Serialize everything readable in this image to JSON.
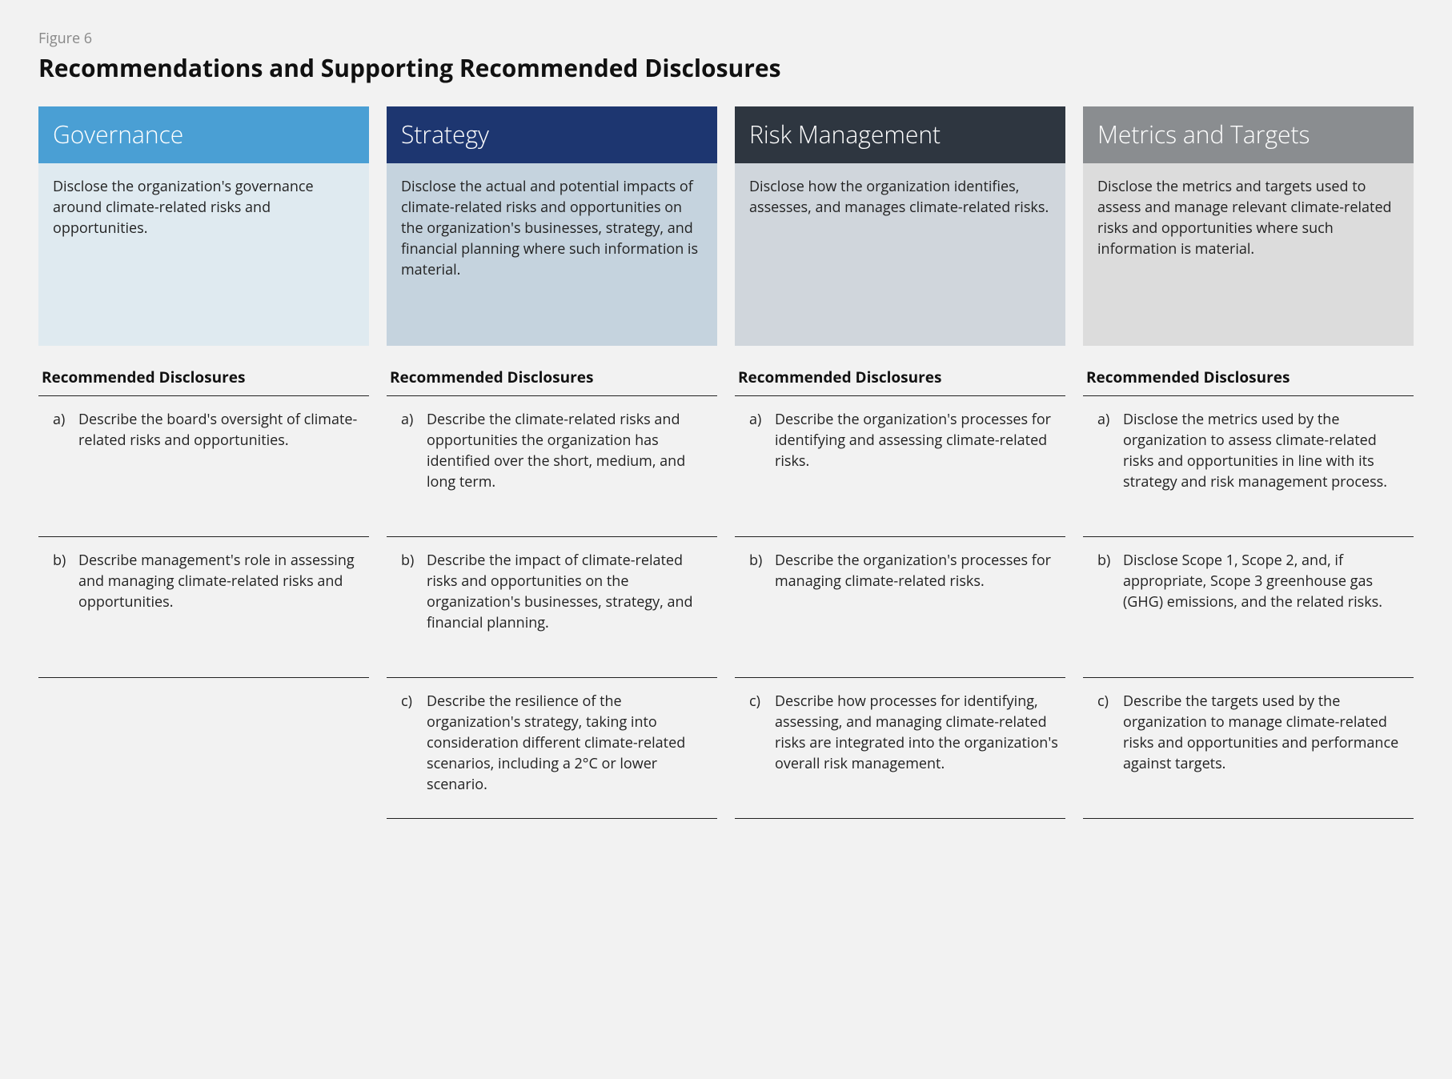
{
  "figure_label": "Figure 6",
  "figure_title": "Recommendations and Supporting Recommended Disclosures",
  "disclosure_header": "Recommended Disclosures",
  "columns": [
    {
      "title": "Governance",
      "header_bg": "#4a9fd4",
      "desc_bg": "#dfeaf0",
      "description": "Disclose the organization's governance around climate-related risks and opportunities.",
      "items": [
        {
          "letter": "a)",
          "text": "Describe the board's oversight of climate-related risks and opportunities."
        },
        {
          "letter": "b)",
          "text": "Describe management's role in assessing and managing climate-related risks and opportunities."
        }
      ]
    },
    {
      "title": "Strategy",
      "header_bg": "#1d3670",
      "desc_bg": "#c5d3de",
      "description": "Disclose the actual and potential impacts of climate-related risks and opportunities on the organization's businesses, strategy, and financial planning where such information is material.",
      "items": [
        {
          "letter": "a)",
          "text": "Describe the climate-related risks and opportunities the organization has identified over the short, medium, and long term."
        },
        {
          "letter": "b)",
          "text": "Describe the impact of climate-related risks and opportunities on the organization's businesses, strategy, and financial planning."
        },
        {
          "letter": "c)",
          "text": "Describe the resilience of the organization's strategy, taking into consideration different climate-related scenarios, including a 2°C or lower scenario."
        }
      ]
    },
    {
      "title": "Risk Management",
      "header_bg": "#2e3640",
      "desc_bg": "#d0d6dc",
      "description": "Disclose how the organization identifies, assesses, and manages climate-related risks.",
      "items": [
        {
          "letter": "a)",
          "text": "Describe the organization's processes for identifying and assessing climate-related risks."
        },
        {
          "letter": "b)",
          "text": "Describe the organization's processes for managing climate-related risks."
        },
        {
          "letter": "c)",
          "text": "Describe how processes for identifying, assessing, and managing climate-related risks are integrated into the organization's overall risk management."
        }
      ]
    },
    {
      "title": "Metrics and Targets",
      "header_bg": "#8a8d90",
      "desc_bg": "#dcdcdc",
      "description": "Disclose the metrics and targets used to assess and manage relevant climate-related risks and opportunities where such information is material.",
      "items": [
        {
          "letter": "a)",
          "text": "Disclose the metrics used by the organization to assess climate-related risks and opportunities in line with its strategy and risk management process."
        },
        {
          "letter": "b)",
          "text": "Disclose Scope 1, Scope 2, and, if appropriate, Scope 3 greenhouse gas (GHG) emissions, and the related risks."
        },
        {
          "letter": "c)",
          "text": "Describe the targets used by the organization to manage climate-related risks and opportunities and performance against targets."
        }
      ]
    }
  ]
}
